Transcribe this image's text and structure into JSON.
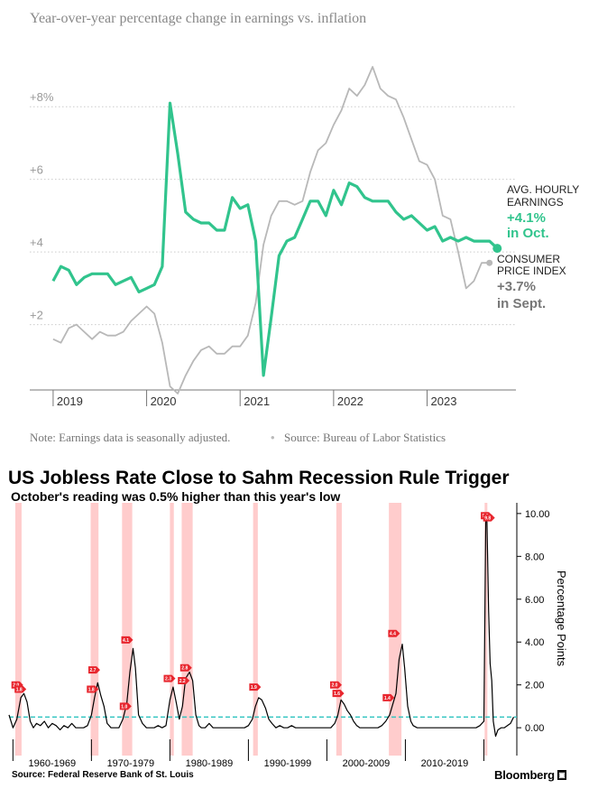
{
  "chart_data": [
    {
      "type": "line",
      "title": "Year-over-year percentage change in earnings vs. inflation",
      "note": "Note: Earnings data is seasonally adjusted.",
      "source": "Source: Bureau of Labor Statistics",
      "y_ticks": [
        "+2",
        "+4",
        "+6",
        "+8%"
      ],
      "y_tick_values": [
        2,
        4,
        6,
        8
      ],
      "ylim": [
        0.2,
        9.0
      ],
      "x_ticks": [
        "2019",
        "2020",
        "2021",
        "2022",
        "2023"
      ],
      "x_tick_values": [
        2019,
        2020,
        2021,
        2022,
        2023
      ],
      "xlim": [
        2018.75,
        2023.95
      ],
      "grid": true,
      "colors": {
        "earnings": "#31c48d",
        "cpi": "#b8b8b8"
      },
      "series": [
        {
          "name": "AVG. HOURLY EARNINGS",
          "x": [
            2019.0,
            2019.083,
            2019.167,
            2019.25,
            2019.333,
            2019.417,
            2019.5,
            2019.583,
            2019.667,
            2019.75,
            2019.833,
            2019.917,
            2020.0,
            2020.083,
            2020.167,
            2020.25,
            2020.333,
            2020.417,
            2020.5,
            2020.583,
            2020.667,
            2020.75,
            2020.833,
            2020.917,
            2021.0,
            2021.083,
            2021.167,
            2021.25,
            2021.333,
            2021.417,
            2021.5,
            2021.583,
            2021.667,
            2021.75,
            2021.833,
            2021.917,
            2022.0,
            2022.083,
            2022.167,
            2022.25,
            2022.333,
            2022.417,
            2022.5,
            2022.583,
            2022.667,
            2022.75,
            2022.833,
            2022.917,
            2023.0,
            2023.083,
            2023.167,
            2023.25,
            2023.333,
            2023.417,
            2023.5,
            2023.583,
            2023.667,
            2023.75
          ],
          "values": [
            3.2,
            3.6,
            3.5,
            3.1,
            3.3,
            3.4,
            3.4,
            3.4,
            3.1,
            3.2,
            3.3,
            2.9,
            3.0,
            3.1,
            3.6,
            8.1,
            6.7,
            5.1,
            4.9,
            4.8,
            4.8,
            4.6,
            4.6,
            5.5,
            5.2,
            5.3,
            4.3,
            0.6,
            2.2,
            3.9,
            4.3,
            4.4,
            4.9,
            5.4,
            5.4,
            5.0,
            5.7,
            5.3,
            5.9,
            5.8,
            5.5,
            5.4,
            5.4,
            5.4,
            5.1,
            4.9,
            5.0,
            4.8,
            4.6,
            4.7,
            4.3,
            4.4,
            4.3,
            4.4,
            4.3,
            4.3,
            4.3,
            4.1
          ]
        },
        {
          "name": "CONSUMER PRICE INDEX",
          "x": [
            2019.0,
            2019.083,
            2019.167,
            2019.25,
            2019.333,
            2019.417,
            2019.5,
            2019.583,
            2019.667,
            2019.75,
            2019.833,
            2019.917,
            2020.0,
            2020.083,
            2020.167,
            2020.25,
            2020.333,
            2020.417,
            2020.5,
            2020.583,
            2020.667,
            2020.75,
            2020.833,
            2020.917,
            2021.0,
            2021.083,
            2021.167,
            2021.25,
            2021.333,
            2021.417,
            2021.5,
            2021.583,
            2021.667,
            2021.75,
            2021.833,
            2021.917,
            2022.0,
            2022.083,
            2022.167,
            2022.25,
            2022.333,
            2022.417,
            2022.5,
            2022.583,
            2022.667,
            2022.75,
            2022.833,
            2022.917,
            2023.0,
            2023.083,
            2023.167,
            2023.25,
            2023.333,
            2023.417,
            2023.5,
            2023.583,
            2023.667
          ],
          "values": [
            1.6,
            1.5,
            1.9,
            2.0,
            1.8,
            1.6,
            1.8,
            1.7,
            1.7,
            1.8,
            2.1,
            2.3,
            2.5,
            2.3,
            1.5,
            0.3,
            0.1,
            0.6,
            1.0,
            1.3,
            1.4,
            1.2,
            1.2,
            1.4,
            1.4,
            1.7,
            2.6,
            4.2,
            5.0,
            5.4,
            5.4,
            5.3,
            5.4,
            6.2,
            6.8,
            7.0,
            7.5,
            7.9,
            8.5,
            8.3,
            8.6,
            9.1,
            8.5,
            8.3,
            8.2,
            7.7,
            7.1,
            6.5,
            6.4,
            6.0,
            5.0,
            4.9,
            4.0,
            3.0,
            3.2,
            3.7,
            3.7
          ]
        }
      ],
      "annotations": [
        {
          "series": "AVG. HOURLY EARNINGS",
          "lines": [
            "AVG. HOURLY",
            "EARNINGS"
          ],
          "value_text": "+4.1%",
          "period_text": "in Oct."
        },
        {
          "series": "CONSUMER PRICE INDEX",
          "lines": [
            "CONSUMER",
            "PRICE INDEX"
          ],
          "value_text": "+3.7%",
          "period_text": "in Sept."
        }
      ]
    },
    {
      "type": "line",
      "title": "US Jobless Rate Close to Sahm Recession Rule Trigger",
      "subtitle": "October's reading was 0.5% higher than this year's low",
      "source": "Source: Federal Reserve Bank of St. Louis",
      "brand": "Bloomberg",
      "ylabel": "Percentage Points",
      "y_ticks": [
        "0.00",
        "2.00",
        "4.00",
        "6.00",
        "8.00",
        "10.00"
      ],
      "y_tick_values": [
        0,
        2,
        4,
        6,
        8,
        10
      ],
      "ylim": [
        -1.3,
        10.5
      ],
      "xlim": [
        1959.5,
        2024.2
      ],
      "x_decade_labels": [
        "1960-1969",
        "1970-1979",
        "1980-1989",
        "1990-1999",
        "2000-2009",
        "2010-2019"
      ],
      "x_decade_centers": [
        1965,
        1975,
        1985,
        1995,
        2005,
        2015
      ],
      "threshold": 0.5,
      "colors": {
        "line": "#000000",
        "threshold": "#2ec4c0",
        "recession": "#ffcccc",
        "marker": "#e8262e"
      },
      "recessions": [
        [
          1960.3,
          1961.1
        ],
        [
          1969.9,
          1970.9
        ],
        [
          1973.9,
          1975.2
        ],
        [
          1980.0,
          1980.5
        ],
        [
          1981.5,
          1982.9
        ],
        [
          1990.6,
          1991.2
        ],
        [
          2001.2,
          2001.9
        ],
        [
          2007.9,
          2009.5
        ],
        [
          2020.1,
          2020.4
        ]
      ],
      "series": [
        {
          "name": "Sahm Rule indicator",
          "x": [
            1959.5,
            1960.0,
            1960.5,
            1961.0,
            1961.4,
            1961.8,
            1962.2,
            1962.6,
            1963.0,
            1963.5,
            1964.0,
            1964.5,
            1965.0,
            1965.5,
            1966.0,
            1966.5,
            1967.0,
            1967.5,
            1968.0,
            1968.5,
            1969.0,
            1969.5,
            1970.0,
            1970.4,
            1970.8,
            1971.2,
            1971.6,
            1972.0,
            1972.5,
            1973.0,
            1973.5,
            1974.0,
            1974.5,
            1974.9,
            1975.3,
            1975.6,
            1976.0,
            1976.5,
            1977.0,
            1977.5,
            1978.0,
            1978.5,
            1979.0,
            1979.5,
            1980.0,
            1980.4,
            1980.8,
            1981.2,
            1981.6,
            1982.0,
            1982.5,
            1982.9,
            1983.3,
            1983.7,
            1984.0,
            1984.5,
            1985.0,
            1985.5,
            1986.0,
            1986.5,
            1987.0,
            1987.5,
            1988.0,
            1988.5,
            1989.0,
            1989.5,
            1990.0,
            1990.5,
            1990.9,
            1991.3,
            1991.7,
            1992.2,
            1992.6,
            1993.0,
            1993.5,
            1994.0,
            1994.5,
            1995.0,
            1995.5,
            1996.0,
            1996.5,
            1997.0,
            1997.5,
            1998.0,
            1998.5,
            1999.0,
            1999.5,
            2000.0,
            2000.5,
            2001.0,
            2001.4,
            2001.8,
            2002.2,
            2002.6,
            2003.0,
            2003.4,
            2003.8,
            2004.2,
            2004.6,
            2005.0,
            2005.5,
            2006.0,
            2006.5,
            2007.0,
            2007.5,
            2008.0,
            2008.4,
            2008.8,
            2009.2,
            2009.6,
            2009.9,
            2010.3,
            2010.7,
            2011.0,
            2011.5,
            2012.0,
            2012.5,
            2013.0,
            2013.5,
            2014.0,
            2014.5,
            2015.0,
            2015.5,
            2016.0,
            2016.5,
            2017.0,
            2017.5,
            2018.0,
            2018.5,
            2019.0,
            2019.5,
            2020.0,
            2020.25,
            2020.4,
            2020.6,
            2020.8,
            2021.0,
            2021.2,
            2021.5,
            2021.8,
            2022.2,
            2022.6,
            2023.0,
            2023.4,
            2023.8
          ],
          "values": [
            0.6,
            0.0,
            0.4,
            1.4,
            1.6,
            1.2,
            0.3,
            0.0,
            0.2,
            0.1,
            0.3,
            0.0,
            0.2,
            0.1,
            -0.1,
            0.1,
            0.0,
            0.2,
            0.0,
            0.0,
            0.0,
            0.1,
            0.6,
            1.4,
            2.1,
            1.5,
            1.0,
            0.2,
            0.0,
            0.0,
            0.0,
            0.4,
            1.1,
            2.6,
            3.7,
            2.8,
            0.6,
            0.2,
            0.0,
            0.0,
            0.0,
            0.1,
            0.0,
            0.1,
            1.3,
            1.9,
            1.2,
            0.4,
            1.0,
            2.3,
            2.6,
            2.2,
            0.6,
            0.1,
            0.0,
            0.0,
            0.2,
            0.0,
            0.0,
            0.0,
            0.0,
            0.0,
            0.0,
            0.0,
            0.0,
            0.0,
            0.1,
            0.4,
            1.0,
            1.4,
            1.3,
            0.9,
            0.4,
            0.2,
            0.0,
            0.1,
            0.0,
            0.0,
            0.1,
            0.0,
            0.0,
            0.0,
            0.0,
            0.0,
            0.0,
            0.0,
            0.0,
            0.0,
            0.0,
            0.2,
            0.6,
            1.3,
            1.1,
            0.8,
            0.6,
            0.3,
            0.1,
            0.0,
            0.0,
            0.0,
            0.0,
            0.0,
            0.0,
            0.1,
            0.3,
            0.6,
            1.1,
            1.6,
            3.2,
            3.9,
            2.8,
            1.0,
            0.3,
            0.1,
            0.0,
            0.0,
            0.0,
            0.0,
            0.0,
            0.0,
            0.0,
            0.0,
            0.0,
            0.0,
            0.0,
            0.0,
            0.0,
            0.0,
            0.0,
            0.0,
            0.1,
            0.3,
            9.9,
            9.6,
            5.5,
            3.0,
            2.2,
            0.3,
            -0.4,
            -0.1,
            0.0,
            0.0,
            0.1,
            0.2,
            0.5
          ],
          "triggers": [
            {
              "x": 1960.5,
              "y": 2.0,
              "label": "2.0"
            },
            {
              "x": 1960.9,
              "y": 1.8,
              "label": "1.8"
            },
            {
              "x": 1970.3,
              "y": 2.7,
              "label": "2.7"
            },
            {
              "x": 1970.1,
              "y": 1.8,
              "label": "1.8"
            },
            {
              "x": 1974.5,
              "y": 4.1,
              "label": "4.1"
            },
            {
              "x": 1974.3,
              "y": 1.0,
              "label": "1.0"
            },
            {
              "x": 1979.9,
              "y": 2.3,
              "label": "2.3"
            },
            {
              "x": 1981.7,
              "y": 2.2,
              "label": "2.2"
            },
            {
              "x": 1982.0,
              "y": 2.8,
              "label": "2.8"
            },
            {
              "x": 1990.8,
              "y": 1.9,
              "label": "1.9"
            },
            {
              "x": 2001.1,
              "y": 2.0,
              "label": "2.0"
            },
            {
              "x": 2001.4,
              "y": 1.6,
              "label": "1.6"
            },
            {
              "x": 2007.8,
              "y": 1.4,
              "label": "1.4"
            },
            {
              "x": 2008.5,
              "y": 4.4,
              "label": "4.4"
            },
            {
              "x": 2020.3,
              "y": 9.9,
              "label": "9.9"
            },
            {
              "x": 2020.6,
              "y": 9.8,
              "label": "9.8"
            }
          ]
        }
      ]
    }
  ]
}
